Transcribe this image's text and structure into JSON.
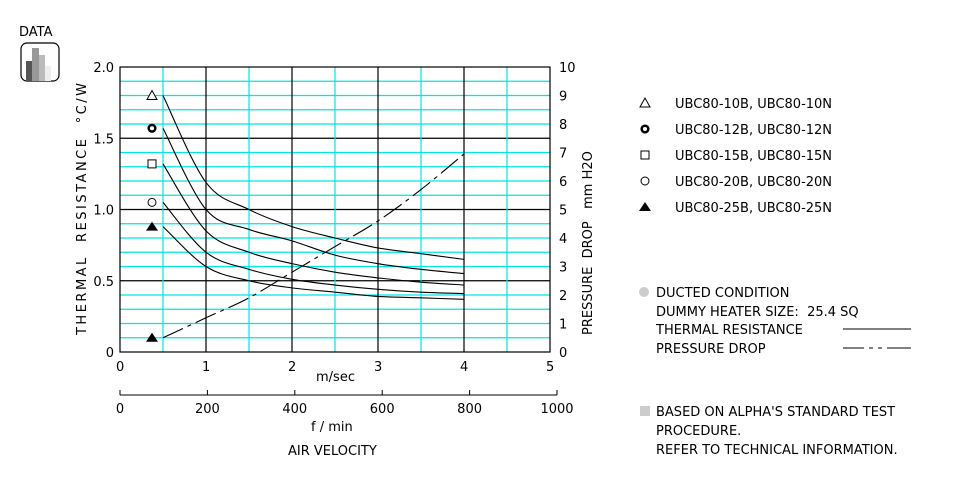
{
  "badge": {
    "label": "DATA",
    "icon": "bar-chart-icon"
  },
  "chart_data": {
    "type": "line",
    "x_axis": {
      "label": "m/sec",
      "range": [
        0,
        5
      ],
      "ticks": [
        "0",
        "1",
        "2",
        "3",
        "4",
        "5"
      ]
    },
    "x2_axis": {
      "label": "f / min",
      "range": [
        0,
        1000
      ],
      "ticks": [
        "0",
        "200",
        "400",
        "600",
        "800",
        "1000"
      ]
    },
    "x_title": "AIR VELOCITY",
    "y_axis": {
      "label": "THERMAL  RESISTANCE  °C/W",
      "range": [
        0,
        2.0
      ],
      "ticks": [
        "0",
        "0.5",
        "1.0",
        "1.5",
        "2.0"
      ]
    },
    "y2_axis": {
      "label": "PRESSURE  DROP   mm H2O",
      "range": [
        0,
        10
      ],
      "ticks": [
        "0",
        "1",
        "2",
        "3",
        "4",
        "5",
        "6",
        "7",
        "8",
        "9",
        "10"
      ]
    },
    "grid": true,
    "colors": {
      "major_grid": "#000000",
      "minor_grid": "#00e5e5",
      "line": "#000000"
    },
    "x": [
      0.5,
      1.0,
      1.5,
      2.0,
      2.5,
      3.0,
      3.5,
      4.0
    ],
    "series": [
      {
        "name": "UBC80-10B, UBC80-10N",
        "marker": "triangle-open",
        "marker_value": 1.8,
        "axis": "left",
        "values": [
          1.8,
          1.19,
          1.0,
          0.88,
          0.8,
          0.73,
          0.69,
          0.65
        ]
      },
      {
        "name": "UBC80-12B, UBC80-12N",
        "marker": "circle-bold",
        "marker_value": 1.57,
        "axis": "left",
        "values": [
          1.57,
          1.0,
          0.86,
          0.78,
          0.68,
          0.62,
          0.58,
          0.55
        ]
      },
      {
        "name": "UBC80-15B, UBC80-15N",
        "marker": "square-open",
        "marker_value": 1.32,
        "axis": "left",
        "values": [
          1.32,
          0.85,
          0.7,
          0.62,
          0.56,
          0.52,
          0.49,
          0.47
        ]
      },
      {
        "name": "UBC80-20B, UBC80-20N",
        "marker": "circle-open",
        "marker_value": 1.05,
        "axis": "left",
        "values": [
          1.05,
          0.7,
          0.58,
          0.51,
          0.47,
          0.44,
          0.42,
          0.41
        ]
      },
      {
        "name": "UBC80-25B, UBC80-25N",
        "marker": "triangle-filled",
        "marker_value": 0.88,
        "axis": "left",
        "values": [
          0.88,
          0.6,
          0.5,
          0.45,
          0.42,
          0.39,
          0.38,
          0.37
        ]
      },
      {
        "name": "PRESSURE DROP",
        "marker": "triangle-filled",
        "marker_value": 0.5,
        "axis": "right",
        "dash": true,
        "values": [
          0.5,
          1.2,
          1.9,
          2.8,
          3.7,
          4.6,
          5.7,
          6.95
        ]
      }
    ]
  },
  "notes": {
    "ducted": "DUCTED CONDITION",
    "heater": "DUMMY HEATER SIZE:  25.4 SQ",
    "thermal": "THERMAL RESISTANCE",
    "pressure": "PRESSURE DROP",
    "based": "BASED ON ALPHA'S STANDARD TEST",
    "procedure": "PROCEDURE.",
    "refer": "REFER TO TECHNICAL INFORMATION."
  }
}
